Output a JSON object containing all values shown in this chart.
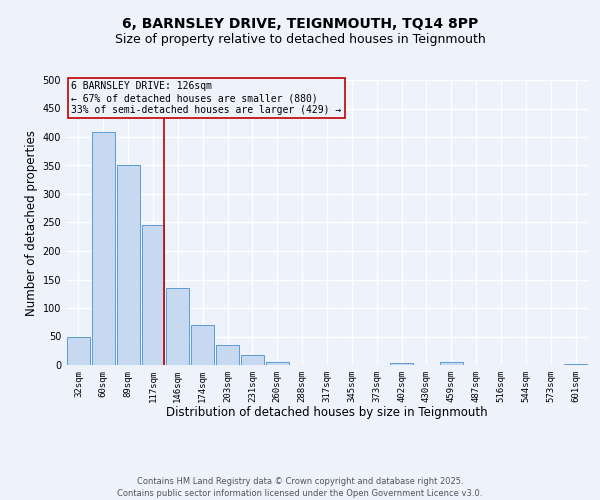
{
  "title": "6, BARNSLEY DRIVE, TEIGNMOUTH, TQ14 8PP",
  "subtitle": "Size of property relative to detached houses in Teignmouth",
  "xlabel": "Distribution of detached houses by size in Teignmouth",
  "ylabel": "Number of detached properties",
  "categories": [
    "32sqm",
    "60sqm",
    "89sqm",
    "117sqm",
    "146sqm",
    "174sqm",
    "203sqm",
    "231sqm",
    "260sqm",
    "288sqm",
    "317sqm",
    "345sqm",
    "373sqm",
    "402sqm",
    "430sqm",
    "459sqm",
    "487sqm",
    "516sqm",
    "544sqm",
    "573sqm",
    "601sqm"
  ],
  "values": [
    50,
    408,
    350,
    245,
    135,
    70,
    35,
    18,
    5,
    0,
    0,
    0,
    0,
    3,
    0,
    5,
    0,
    0,
    0,
    0,
    2
  ],
  "bar_color": "#c6d9f0",
  "bar_edge_color": "#5b9bd5",
  "vline_x_index": 3,
  "vline_color": "#c00000",
  "ylim": [
    0,
    500
  ],
  "yticks": [
    0,
    50,
    100,
    150,
    200,
    250,
    300,
    350,
    400,
    450,
    500
  ],
  "annotation_line1": "6 BARNSLEY DRIVE: 126sqm",
  "annotation_line2": "← 67% of detached houses are smaller (880)",
  "annotation_line3": "33% of semi-detached houses are larger (429) →",
  "annotation_box_color": "#c00000",
  "footer_line1": "Contains HM Land Registry data © Crown copyright and database right 2025.",
  "footer_line2": "Contains public sector information licensed under the Open Government Licence v3.0.",
  "bg_color": "#eef2fb",
  "grid_color": "#ffffff",
  "title_fontsize": 10,
  "subtitle_fontsize": 9,
  "tick_fontsize": 6.5,
  "label_fontsize": 8.5,
  "footer_fontsize": 6,
  "annotation_fontsize": 7
}
